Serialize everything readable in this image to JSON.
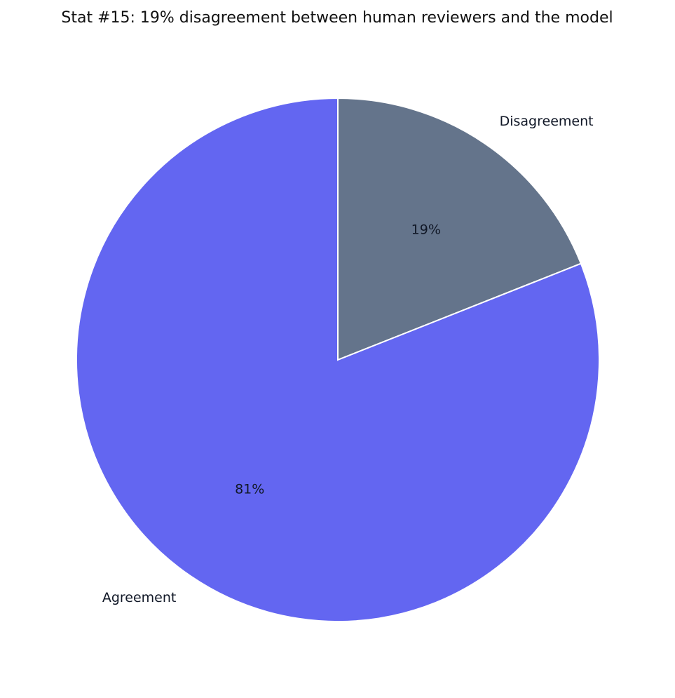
{
  "chart_data": {
    "type": "pie",
    "title": "Stat #15: 19% disagreement between human reviewers and the model",
    "categories": [
      "Disagreement",
      "Agreement"
    ],
    "values": [
      19,
      81
    ],
    "value_labels": [
      "19%",
      "81%"
    ],
    "colors": [
      "#64748b",
      "#6366f1"
    ]
  }
}
